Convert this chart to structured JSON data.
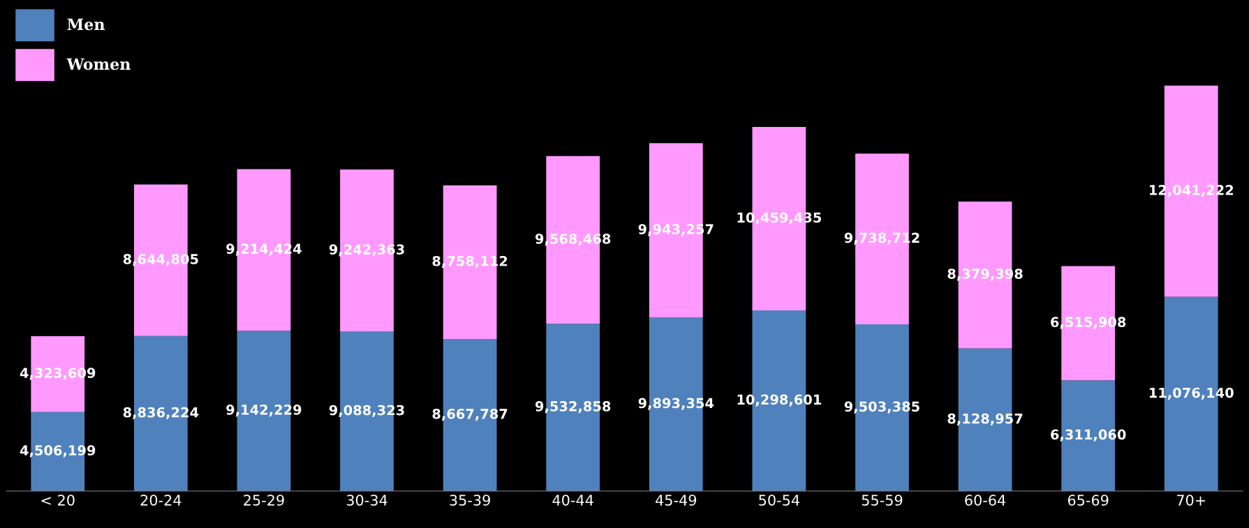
{
  "chart_data": {
    "type": "bar",
    "stacked": true,
    "categories": [
      "< 20",
      "20-24",
      "25-29",
      "30-34",
      "35-39",
      "40-44",
      "45-49",
      "50-54",
      "55-59",
      "60-64",
      "65-69",
      "70+"
    ],
    "series": [
      {
        "name": "Men",
        "color": "#4f81bd",
        "values": [
          4506199,
          8836224,
          9142229,
          9088323,
          8667787,
          9532858,
          9893354,
          10298601,
          9503385,
          8128957,
          6311060,
          11076140
        ],
        "value_labels": [
          "4,506,199",
          "8,836,224",
          "9,142,229",
          "9,088,323",
          "8,667,787",
          "9,532,858",
          "9,893,354",
          "10,298,601",
          "9,503,385",
          "8,128,957",
          "6,311,060",
          "11,076,140"
        ]
      },
      {
        "name": "Women",
        "color": "#ff99ff",
        "values": [
          4323609,
          8644805,
          9214424,
          9242363,
          8758112,
          9568468,
          9943257,
          10459435,
          9738712,
          8379398,
          6515908,
          12041222
        ],
        "value_labels": [
          "4,323,609",
          "8,644,805",
          "9,214,424",
          "9,242,363",
          "8,758,112",
          "9,568,468",
          "9,943,257",
          "10,459,435",
          "9,738,712",
          "8,379,398",
          "6,515,908",
          "12,041,222"
        ]
      }
    ],
    "ylim": [
      0,
      28000000
    ],
    "tick_labels": "x",
    "legend": "top left",
    "grid": false
  }
}
